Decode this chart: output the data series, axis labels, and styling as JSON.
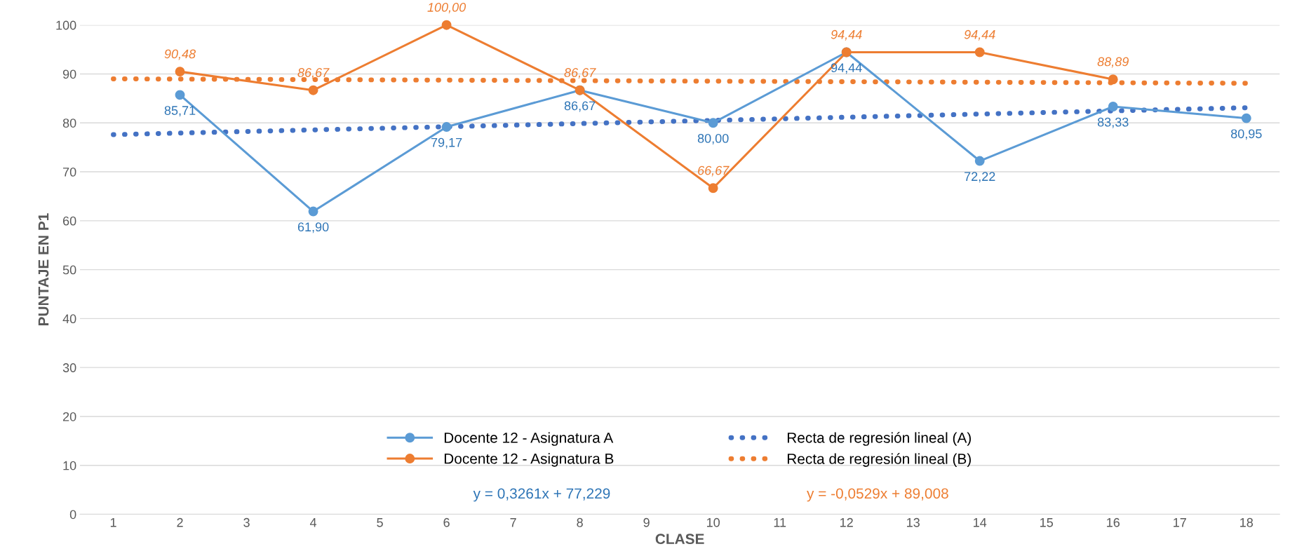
{
  "chart_data": {
    "type": "line",
    "xlabel": "CLASE",
    "ylabel": "PUNTAJE EN P1",
    "xlim": [
      0.5,
      18.5
    ],
    "xticks": [
      1,
      2,
      3,
      4,
      5,
      6,
      7,
      8,
      9,
      10,
      11,
      12,
      13,
      14,
      15,
      16,
      17,
      18
    ],
    "ylim": [
      0,
      100
    ],
    "yticks": [
      0,
      10,
      20,
      30,
      40,
      50,
      60,
      70,
      80,
      90,
      100
    ],
    "grid": "y",
    "legend": "bottom",
    "series": [
      {
        "name": "Docente 12 - Asignatura A",
        "color": "#5b9bd5",
        "marker": "circle",
        "line_style": "solid",
        "x": [
          2,
          4,
          6,
          8,
          10,
          12,
          14,
          16,
          18
        ],
        "values": [
          85.71,
          61.9,
          79.17,
          86.67,
          80.0,
          94.44,
          72.22,
          83.33,
          80.95
        ],
        "value_labels": [
          "85,71",
          "61,90",
          "79,17",
          "86,67",
          "80,00",
          "94,44",
          "72,22",
          "83,33",
          "80,95"
        ]
      },
      {
        "name": "Docente 12 - Asignatura B",
        "color": "#ed7d31",
        "marker": "circle",
        "line_style": "solid",
        "x": [
          2,
          4,
          6,
          8,
          10,
          12,
          14,
          16
        ],
        "values": [
          90.48,
          86.67,
          100.0,
          86.67,
          66.67,
          94.44,
          94.44,
          88.89
        ],
        "value_labels": [
          "90,48",
          "86,67",
          "100,00",
          "86,67",
          "66,67",
          "94,44",
          "94,44",
          "88,89"
        ]
      },
      {
        "name": "Recta de regresión lineal (A)",
        "color": "#4472c4",
        "marker": "none",
        "line_style": "dotted",
        "x": [
          1,
          18
        ],
        "values": [
          77.6,
          83.1
        ]
      },
      {
        "name": "Recta de regresión lineal (B)",
        "color": "#ed7d31",
        "marker": "none",
        "line_style": "dotted",
        "x": [
          1,
          18
        ],
        "values": [
          89.0,
          88.1
        ]
      }
    ],
    "annotations": [
      "y = 0,3261x + 77,229",
      "y = -0,0529x + 89,008"
    ]
  }
}
